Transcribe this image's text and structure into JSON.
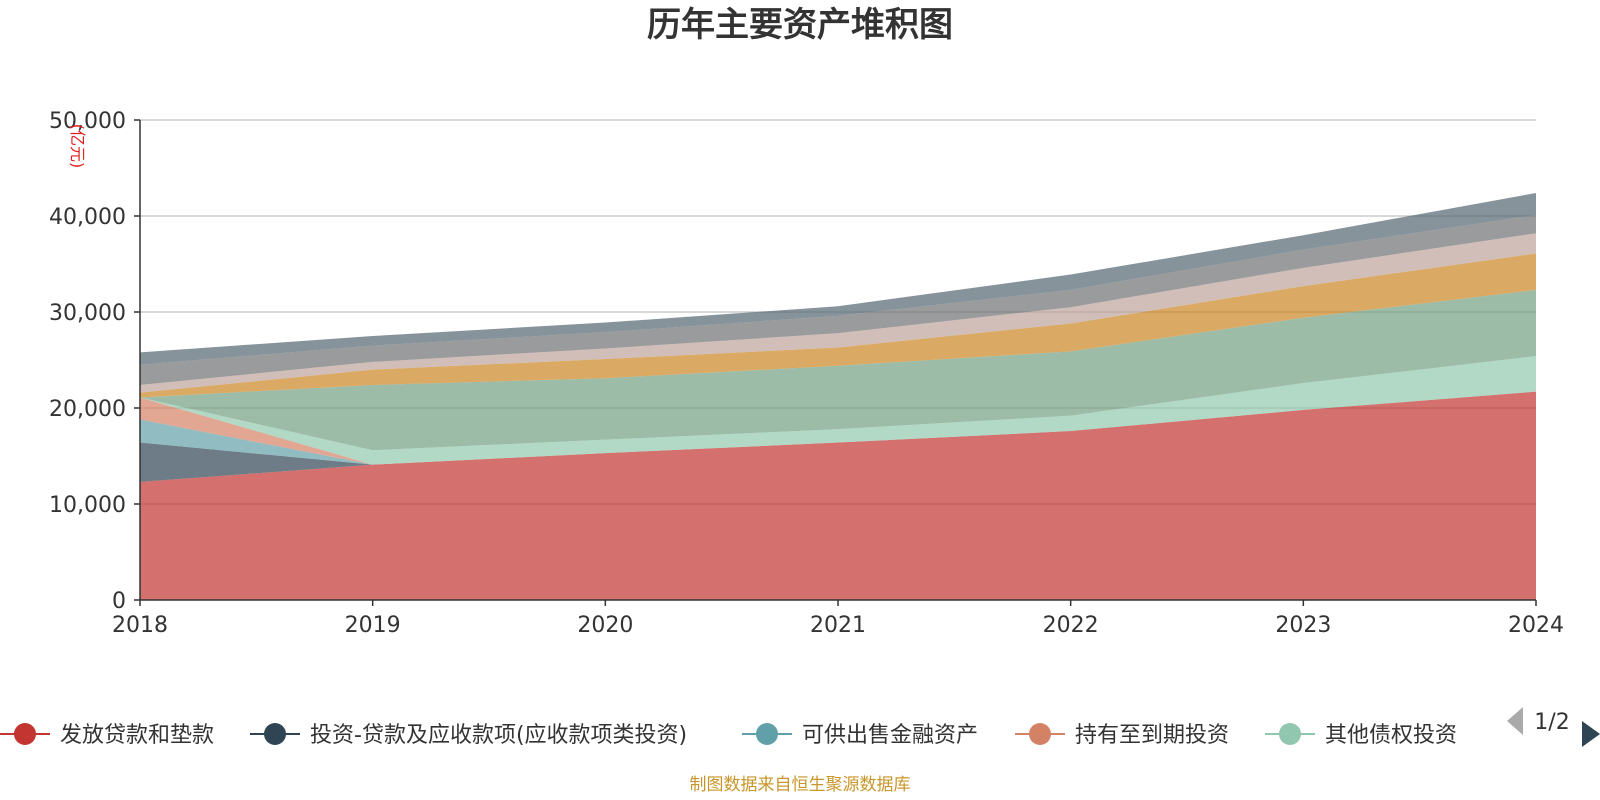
{
  "chart_data": {
    "type": "area",
    "stacked": true,
    "title": "历年主要资产堆积图",
    "unit_label": "(亿元)",
    "x": [
      "2018",
      "2019",
      "2020",
      "2021",
      "2022",
      "2023",
      "2024"
    ],
    "ylim": [
      0,
      50000
    ],
    "yticks": [
      0,
      10000,
      20000,
      30000,
      40000,
      50000
    ],
    "ytick_labels": [
      "0",
      "10,000",
      "20,000",
      "30,000",
      "40,000",
      "50,000"
    ],
    "grid": true,
    "legend_position": "bottom",
    "series": [
      {
        "name": "发放贷款和垫款",
        "color": "#c23531",
        "values": [
          12300,
          14100,
          15300,
          16400,
          17600,
          19800,
          21700
        ]
      },
      {
        "name": "投资-贷款及应收款项(应收款项类投资)",
        "color": "#2f4554",
        "values": [
          4100,
          0,
          0,
          0,
          0,
          0,
          0
        ]
      },
      {
        "name": "可供出售金融资产",
        "color": "#61a0a8",
        "values": [
          2400,
          0,
          0,
          0,
          0,
          0,
          0
        ]
      },
      {
        "name": "持有至到期投资",
        "color": "#d48265",
        "values": [
          2300,
          0,
          0,
          0,
          0,
          0,
          0
        ]
      },
      {
        "name": "其他债权投资",
        "color": "#91c7ae",
        "values": [
          0,
          1500,
          1400,
          1400,
          1600,
          2800,
          3700
        ]
      },
      {
        "name": "",
        "color": "#749f83",
        "values": [
          0,
          6800,
          6400,
          6600,
          6700,
          6800,
          6900
        ]
      },
      {
        "name": "",
        "color": "#ca8622",
        "values": [
          500,
          1600,
          2000,
          1900,
          2900,
          3300,
          3800
        ]
      },
      {
        "name": "",
        "color": "#bda29a",
        "values": [
          800,
          800,
          1100,
          1500,
          1700,
          1900,
          2100
        ]
      },
      {
        "name": "",
        "color": "#6e7074",
        "values": [
          2100,
          1700,
          1700,
          1800,
          1800,
          1900,
          1900
        ]
      },
      {
        "name": "",
        "color": "#546570",
        "values": [
          1300,
          1000,
          1000,
          1000,
          1600,
          1500,
          2300
        ]
      }
    ]
  },
  "legend": {
    "page_indicator": "1/2",
    "prev_icon": "triangle-left-icon",
    "next_icon": "triangle-right-icon"
  },
  "source_note": "制图数据来自恒生聚源数据库"
}
